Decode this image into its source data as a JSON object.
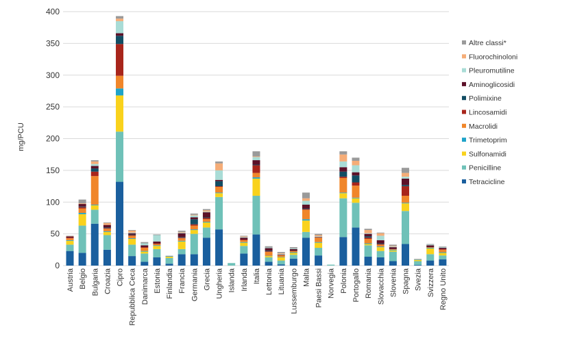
{
  "chart_data": {
    "type": "bar",
    "stacked": true,
    "title": "",
    "xlabel": "",
    "ylabel": "mg/PCU",
    "ylim": [
      0,
      400
    ],
    "yticks": [
      0,
      50,
      100,
      150,
      200,
      250,
      300,
      350,
      400
    ],
    "grid": true,
    "legend_placement": "right",
    "categories": [
      "Austria",
      "Belgio",
      "Bulgaria",
      "Croazia",
      "Cipro",
      "Repubblica Ceca",
      "Danimarca",
      "Estonia",
      "Finlandia",
      "Francia",
      "Germania",
      "Grecia",
      "Ungheria",
      "Islanda",
      "Irlanda",
      "Italia",
      "Lettonia",
      "Lituania",
      "Lussemburgo",
      "Malta",
      "Paesi Bassi",
      "Norvegia",
      "Polonia",
      "Portogallo",
      "Romania",
      "Slovacchia",
      "Slovenia",
      "Spagna",
      "Svezia",
      "Svizzera",
      "Regno Unito"
    ],
    "series": [
      {
        "name": "Tetracicline",
        "color": "#1a5f9e",
        "values": [
          23,
          20,
          66,
          25,
          132,
          15,
          6,
          13,
          3,
          18,
          18,
          44,
          57,
          0,
          19,
          49,
          6,
          2,
          11,
          44,
          16,
          0,
          45,
          60,
          14,
          13,
          7,
          34,
          1,
          8,
          10
        ]
      },
      {
        "name": "Penicilline",
        "color": "#6fc1b8",
        "values": [
          10,
          43,
          22,
          23,
          79,
          18,
          13,
          13,
          9,
          8,
          32,
          16,
          51,
          4,
          12,
          61,
          7,
          6,
          6,
          9,
          12,
          1.5,
          61,
          39,
          18,
          10,
          15,
          52,
          6,
          10,
          6
        ]
      },
      {
        "name": "Sulfonamidi",
        "color": "#f9d21c",
        "values": [
          6,
          18,
          7,
          5,
          57,
          9,
          3,
          5,
          2,
          12,
          6,
          8,
          6,
          0,
          5,
          27,
          2,
          5,
          3,
          18,
          8,
          0,
          8,
          7,
          2,
          6,
          2,
          12,
          2,
          9,
          4
        ]
      },
      {
        "name": "Trimetoprim",
        "color": "#1fa3c9",
        "values": [
          1,
          2,
          1,
          1,
          11,
          1,
          1,
          1,
          0.5,
          1,
          1,
          1,
          1,
          0,
          1,
          2,
          0.5,
          0.5,
          1,
          2,
          1,
          0,
          1,
          1,
          1,
          1,
          1,
          1,
          0.5,
          1,
          1
        ]
      },
      {
        "name": "Macrolidi",
        "color": "#f0862a",
        "values": [
          3,
          7,
          45,
          4,
          20,
          4,
          5,
          2,
          0,
          4,
          6,
          4,
          9,
          0,
          3,
          7,
          6,
          3,
          2,
          15,
          7,
          0,
          23,
          19,
          7,
          3,
          1,
          11,
          0,
          1,
          4
        ]
      },
      {
        "name": "Lincosamidi",
        "color": "#a8251b",
        "values": [
          1,
          2,
          7,
          1,
          50,
          1,
          1,
          1,
          0,
          1,
          2,
          2,
          1,
          0,
          1,
          12,
          1,
          0,
          0,
          1,
          0,
          0,
          2,
          5,
          2,
          1,
          0,
          15,
          0,
          0,
          1
        ]
      },
      {
        "name": "Polimixine",
        "color": "#124d63",
        "values": [
          0,
          1,
          5,
          1,
          13,
          1,
          0,
          0,
          0,
          1,
          8,
          1,
          8,
          0,
          0,
          1,
          1,
          0,
          0,
          1,
          0,
          0,
          8,
          11,
          2,
          1,
          0,
          2,
          0,
          0,
          0
        ]
      },
      {
        "name": "Aminoglicosidi",
        "color": "#5c1128",
        "values": [
          2,
          4,
          4,
          4,
          4,
          2,
          3,
          3,
          0,
          6,
          3,
          8,
          2,
          0,
          3,
          7,
          4,
          1,
          3,
          6,
          1,
          0,
          7,
          5,
          4,
          5,
          3,
          10,
          0,
          3,
          2
        ]
      },
      {
        "name": "Pleuromutiline",
        "color": "#a9dcd6",
        "values": [
          0,
          0,
          3,
          0,
          19,
          1,
          3,
          10,
          0,
          1,
          3,
          1,
          15,
          0,
          1,
          5,
          1,
          1,
          1,
          6,
          1,
          0,
          9,
          11,
          1,
          7,
          1,
          3,
          0,
          1,
          1
        ]
      },
      {
        "name": "Fluorochinoloni",
        "color": "#f5ad78",
        "values": [
          0.5,
          1,
          4,
          3,
          4,
          3,
          0,
          0,
          0,
          1,
          1,
          2,
          11,
          0,
          1,
          1,
          0,
          1,
          0,
          4,
          2,
          0,
          11,
          7,
          5,
          4,
          1,
          6,
          0,
          0,
          0
        ]
      },
      {
        "name": "Altre classi*",
        "color": "#9a9a9a",
        "values": [
          0.5,
          6,
          2,
          1,
          4,
          1,
          2,
          1,
          1,
          2,
          2,
          2,
          3,
          0,
          1,
          8,
          2,
          2,
          2,
          9,
          2,
          0,
          5,
          5,
          2,
          1,
          2,
          8,
          1,
          1,
          1
        ]
      }
    ]
  }
}
